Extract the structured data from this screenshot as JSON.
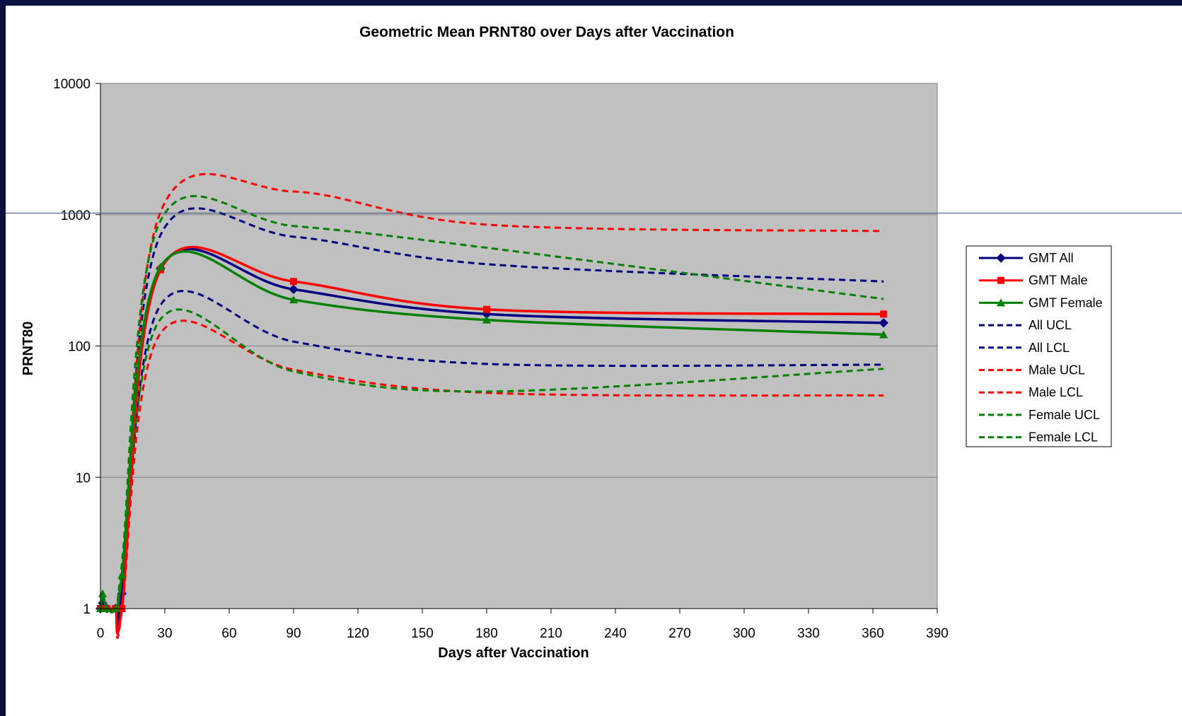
{
  "chart_data": {
    "type": "line",
    "title": "Geometric Mean PRNT80 over Days after Vaccination",
    "xlabel": "Days after Vaccination",
    "ylabel": "PRNT80",
    "xlim": [
      0,
      390
    ],
    "x_ticks": [
      0,
      30,
      60,
      90,
      120,
      150,
      180,
      210,
      240,
      270,
      300,
      330,
      360,
      390
    ],
    "ylim": [
      1,
      10000
    ],
    "y_scale": "log",
    "y_ticks": [
      1,
      10,
      100,
      1000,
      10000
    ],
    "grid": "horizontal major gridlines",
    "legend_position": "right",
    "plot_background": "#c0c0c0",
    "series": [
      {
        "name": "GMT All",
        "color": "#000080",
        "style": "solid",
        "marker": "diamond",
        "x": [
          0,
          1,
          3,
          7,
          10,
          28,
          90,
          180,
          365
        ],
        "y": [
          1,
          1.1,
          1,
          1,
          1.3,
          390,
          270,
          175,
          150
        ]
      },
      {
        "name": "GMT Male",
        "color": "#ff0000",
        "style": "solid",
        "marker": "square",
        "x": [
          0,
          1,
          3,
          7,
          10,
          28,
          90,
          180,
          365
        ],
        "y": [
          1,
          1,
          1,
          1,
          1,
          380,
          310,
          190,
          175
        ]
      },
      {
        "name": "GMT Female",
        "color": "#008000",
        "style": "solid",
        "marker": "triangle",
        "x": [
          0,
          1,
          3,
          7,
          10,
          28,
          90,
          180,
          365
        ],
        "y": [
          1,
          1.3,
          1,
          1,
          1.8,
          400,
          225,
          158,
          122
        ]
      },
      {
        "name": "All UCL",
        "color": "#000080",
        "style": "dashed",
        "x": [
          0,
          1,
          3,
          7,
          10,
          28,
          90,
          180,
          365
        ],
        "y": [
          1,
          1.1,
          1,
          1,
          1.4,
          700,
          680,
          420,
          310
        ]
      },
      {
        "name": "All LCL",
        "color": "#000080",
        "style": "dashed",
        "x": [
          0,
          1,
          3,
          7,
          10,
          28,
          90,
          180,
          365
        ],
        "y": [
          1,
          1,
          1,
          1,
          1.1,
          205,
          108,
          73,
          72
        ]
      },
      {
        "name": "Male UCL",
        "color": "#ff0000",
        "style": "dashed",
        "x": [
          0,
          1,
          3,
          7,
          10,
          28,
          90,
          180,
          365
        ],
        "y": [
          1,
          1,
          1,
          1,
          1,
          1050,
          1500,
          840,
          750
        ]
      },
      {
        "name": "Male LCL",
        "color": "#ff0000",
        "style": "dashed",
        "x": [
          0,
          1,
          3,
          7,
          10,
          28,
          90,
          180,
          365
        ],
        "y": [
          1,
          1,
          1,
          1,
          1,
          125,
          66,
          44,
          42
        ]
      },
      {
        "name": "Female UCL",
        "color": "#008000",
        "style": "dashed",
        "x": [
          0,
          1,
          3,
          7,
          10,
          28,
          90,
          180,
          365
        ],
        "y": [
          1,
          1.3,
          1,
          1,
          2.2,
          900,
          820,
          560,
          228
        ]
      },
      {
        "name": "Female LCL",
        "color": "#008000",
        "style": "dashed",
        "x": [
          0,
          1,
          3,
          7,
          10,
          28,
          90,
          180,
          365
        ],
        "y": [
          1,
          1.2,
          1,
          1,
          1.4,
          160,
          64,
          45,
          67
        ]
      }
    ]
  }
}
